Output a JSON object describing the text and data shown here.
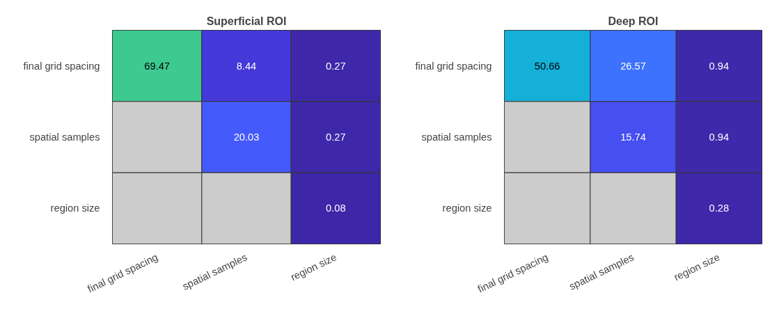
{
  "chart_data": [
    {
      "type": "heatmap",
      "title": "Superficial ROI",
      "categories": [
        "final grid spacing",
        "spatial samples",
        "region size"
      ],
      "y_categories": [
        "final grid spacing",
        "spatial samples",
        "region size"
      ],
      "cells": [
        [
          69.47,
          8.44,
          0.27
        ],
        [
          null,
          20.03,
          0.27
        ],
        [
          null,
          null,
          0.08
        ]
      ],
      "colors": [
        [
          "#3dc98f",
          "#4438d8",
          "#3e28a9"
        ],
        [
          "#cccccc",
          "#445afa",
          "#3e28a9"
        ],
        [
          "#cccccc",
          "#cccccc",
          "#3e26a8"
        ]
      ],
      "data_labels": true
    },
    {
      "type": "heatmap",
      "title": "Deep ROI",
      "categories": [
        "final grid spacing",
        "spatial samples",
        "region size"
      ],
      "y_categories": [
        "final grid spacing",
        "spatial samples",
        "region size"
      ],
      "cells": [
        [
          50.66,
          26.57,
          0.94
        ],
        [
          null,
          15.74,
          0.94
        ],
        [
          null,
          null,
          0.28
        ]
      ],
      "colors": [
        [
          "#14b0d8",
          "#3d72fe",
          "#3e29ab"
        ],
        [
          "#cccccc",
          "#464ff0",
          "#3e29ab"
        ],
        [
          "#cccccc",
          "#cccccc",
          "#3e27a9"
        ]
      ],
      "data_labels": true
    }
  ]
}
